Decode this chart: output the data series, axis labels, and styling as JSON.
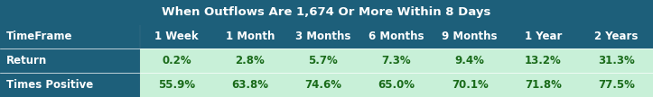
{
  "title": "When Outflows Are 1,674 Or More Within 8 Days",
  "col_headers": [
    "TimeFrame",
    "1 Week",
    "1 Month",
    "3 Months",
    "6 Months",
    "9 Months",
    "1 Year",
    "2 Years"
  ],
  "rows": [
    [
      "Return",
      "0.2%",
      "2.8%",
      "5.7%",
      "7.3%",
      "9.4%",
      "13.2%",
      "31.3%"
    ],
    [
      "Times Positive",
      "55.9%",
      "63.8%",
      "74.6%",
      "65.0%",
      "70.1%",
      "71.8%",
      "77.5%"
    ]
  ],
  "title_bg": "#1d5f7a",
  "title_fg": "#ffffff",
  "header_bg": "#1d5f7a",
  "header_fg": "#ffffff",
  "row_bg": "#c8f0d8",
  "row_fg": "#1a6b1a",
  "label_fg": "#ffffff",
  "fig_width": 7.23,
  "fig_height": 1.08,
  "dpi": 100,
  "title_fontsize": 9.5,
  "cell_fontsize": 8.5
}
